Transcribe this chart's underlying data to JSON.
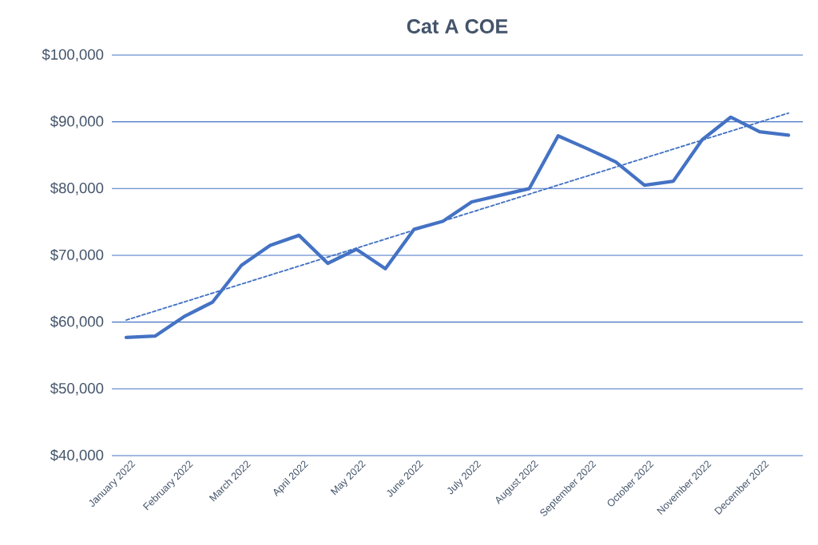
{
  "chart_data": {
    "type": "line",
    "title": "Cat A COE",
    "categories": [
      "January 2022",
      null,
      "February 2022",
      null,
      "March 2022",
      null,
      "April 2022",
      null,
      "May 2022",
      null,
      "June 2022",
      null,
      "July 2022",
      null,
      "August 2022",
      null,
      "September 2022",
      null,
      "October 2022",
      null,
      "November 2022",
      null,
      "December 2022",
      null
    ],
    "series": [
      {
        "color": "#4472c4",
        "values": [
          57700,
          57900,
          60800,
          63000,
          68500,
          71500,
          73000,
          68800,
          70900,
          68000,
          73900,
          75100,
          78000,
          79000,
          80000,
          87900,
          86000,
          84000,
          80500,
          81100,
          87300,
          90700,
          88500,
          88000
        ]
      },
      {
        "type": "line",
        "color": "#4472c4",
        "line_style": "dashed",
        "values": [
          60300,
          null,
          null,
          null,
          null,
          null,
          null,
          null,
          null,
          null,
          null,
          null,
          null,
          null,
          null,
          null,
          null,
          null,
          null,
          null,
          null,
          null,
          null,
          91300
        ]
      }
    ],
    "ylim": [
      40000,
      100000
    ],
    "yticks": [
      {
        "value": 40000,
        "label": "$40,000"
      },
      {
        "value": 50000,
        "label": "$50,000"
      },
      {
        "value": 60000,
        "label": "$60,000"
      },
      {
        "value": 70000,
        "label": "$70,000"
      },
      {
        "value": 80000,
        "label": "$80,000"
      },
      {
        "value": 90000,
        "label": "$90,000"
      },
      {
        "value": 100000,
        "label": "$100,000"
      }
    ],
    "grid": "y"
  }
}
